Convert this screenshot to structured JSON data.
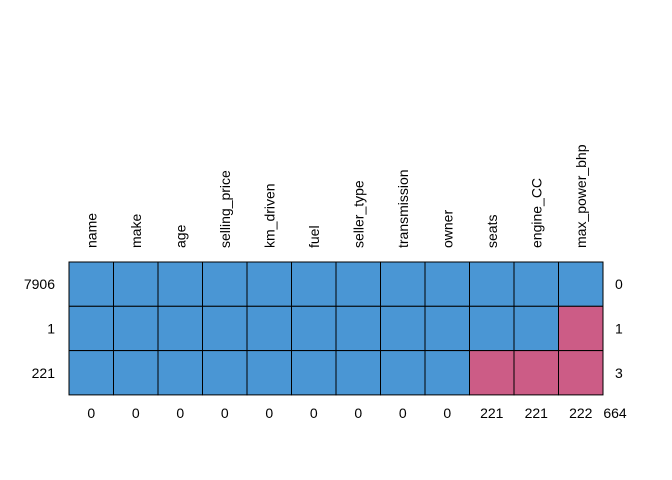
{
  "chart_data": {
    "type": "heatmap",
    "title": "",
    "columns": [
      "name",
      "make",
      "age",
      "selling_price",
      "km_driven",
      "fuel",
      "seller_type",
      "transmission",
      "owner",
      "seats",
      "engine_CC",
      "max_power_bhp"
    ],
    "rows": [
      {
        "frequency": "7906",
        "missing_count": "0",
        "pattern": [
          0,
          0,
          0,
          0,
          0,
          0,
          0,
          0,
          0,
          0,
          0,
          0
        ]
      },
      {
        "frequency": "1",
        "missing_count": "1",
        "pattern": [
          0,
          0,
          0,
          0,
          0,
          0,
          0,
          0,
          0,
          0,
          0,
          1
        ]
      },
      {
        "frequency": "221",
        "missing_count": "3",
        "pattern": [
          0,
          0,
          0,
          0,
          0,
          0,
          0,
          0,
          0,
          1,
          1,
          1
        ]
      }
    ],
    "column_missing_totals": [
      "0",
      "0",
      "0",
      "0",
      "0",
      "0",
      "0",
      "0",
      "0",
      "221",
      "221",
      "222"
    ],
    "total_missing": "664",
    "colors": {
      "observed": "#4a96d4",
      "missing": "#cc5c86",
      "border": "#000000"
    }
  }
}
